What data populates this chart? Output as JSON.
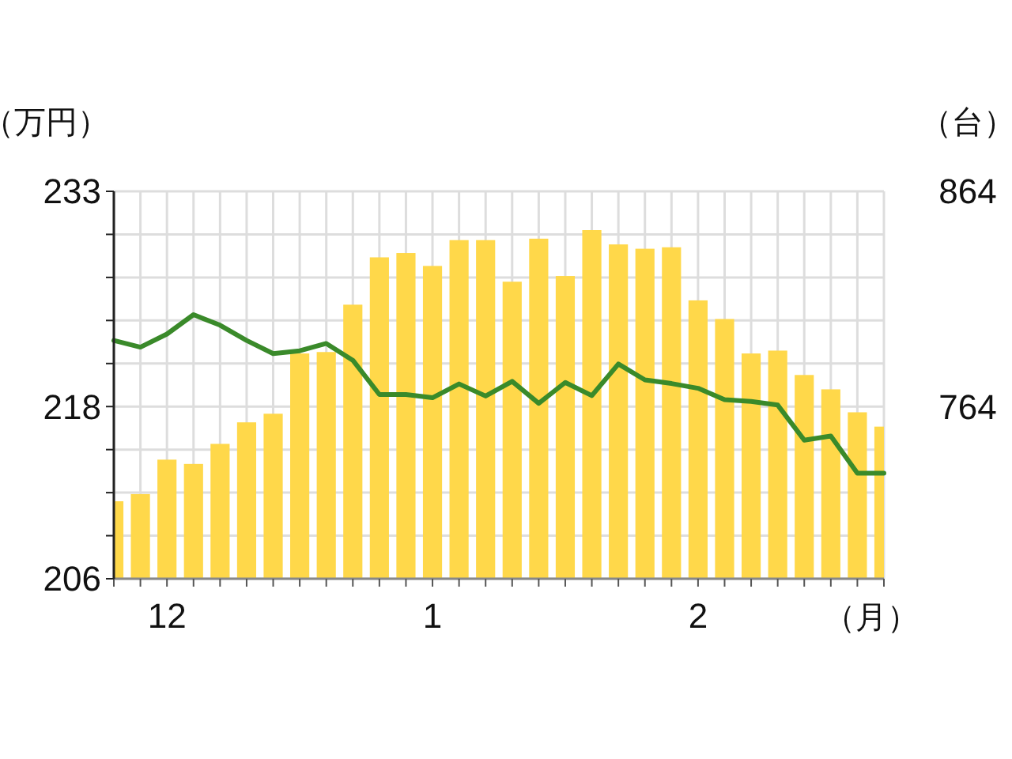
{
  "chart_data": {
    "type": "bar",
    "ylabel": "（万円）",
    "y2label": "（台）",
    "xlabel": "（月）",
    "categories": [
      null,
      null,
      "12",
      null,
      null,
      null,
      null,
      null,
      null,
      null,
      null,
      null,
      "1",
      null,
      null,
      null,
      null,
      null,
      null,
      null,
      null,
      null,
      "2",
      null,
      null,
      null,
      null,
      null,
      null,
      null
    ],
    "series": [
      {
        "color": "#ffd84a",
        "values": [
          211.4,
          211.9,
          214.3,
          214.0,
          215.4,
          216.9,
          217.5,
          221.7,
          221.8,
          225.1,
          228.4,
          228.7,
          227.8,
          229.6,
          229.6,
          226.7,
          229.7,
          227.1,
          230.3,
          229.3,
          229.0,
          229.1,
          225.4,
          224.1,
          221.7,
          221.9,
          220.2,
          219.2,
          217.6,
          216.6
        ]
      },
      {
        "type": "line",
        "axis": "y2",
        "color": "#3a8a2a",
        "values": [
          794.7,
          791.6,
          797.7,
          806.7,
          801.8,
          794.7,
          788.6,
          789.9,
          793.3,
          785.5,
          769.6,
          769.6,
          768.1,
          774.5,
          768.9,
          775.7,
          765.5,
          775.2,
          769.1,
          783.8,
          776.4,
          774.7,
          772.5,
          767.2,
          766.4,
          764.7,
          748.4,
          750.3,
          733.0,
          733.0
        ]
      }
    ],
    "ylim": [
      206,
      233
    ],
    "yticks": [
      206,
      {
        "value": 209,
        "label": null
      },
      {
        "value": 212,
        "label": null
      },
      {
        "value": 215,
        "label": null
      },
      218,
      {
        "value": 221,
        "label": null
      },
      {
        "value": 224,
        "label": null
      },
      {
        "value": 227,
        "label": null
      },
      {
        "value": 230,
        "label": null
      },
      233
    ],
    "y2lim": [
      684,
      864
    ],
    "y2ticks": [
      764,
      864
    ],
    "grid": true,
    "marker": "none",
    "line_style": "solid"
  }
}
